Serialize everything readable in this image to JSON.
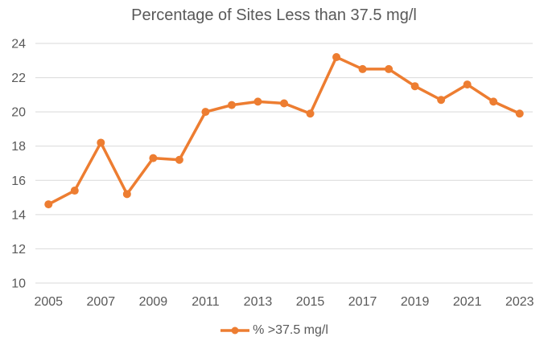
{
  "title": "Percentage of Sites Less than 37.5 mg/l",
  "legend": {
    "label": "% >37.5 mg/l"
  },
  "colors": {
    "line": "#ED7D31",
    "marker": "#ED7D31",
    "text": "#595959",
    "gridline": "#D9D9D9"
  },
  "chart_data": {
    "type": "line",
    "title": "Percentage of Sites Less than 37.5 mg/l",
    "x": [
      2005,
      2006,
      2007,
      2008,
      2009,
      2010,
      2011,
      2012,
      2013,
      2014,
      2015,
      2016,
      2017,
      2018,
      2019,
      2020,
      2021,
      2022,
      2023
    ],
    "series": [
      {
        "name": "% >37.5 mg/l",
        "values": [
          14.6,
          15.4,
          18.2,
          15.2,
          17.3,
          17.2,
          20.0,
          20.4,
          20.6,
          20.5,
          19.9,
          23.2,
          22.5,
          22.5,
          21.5,
          20.7,
          21.6,
          20.6,
          19.9
        ]
      }
    ],
    "xlabel": "",
    "ylabel": "",
    "ylim": [
      10,
      24
    ],
    "ytick_step": 2,
    "ytick_labels": [
      "10",
      "12",
      "14",
      "16",
      "18",
      "20",
      "22",
      "24"
    ],
    "xtick_every": 2,
    "xtick_labels": [
      "2005",
      "2007",
      "2009",
      "2011",
      "2013",
      "2015",
      "2017",
      "2019",
      "2021",
      "2023"
    ],
    "grid": "horizontal",
    "legend_position": "bottom"
  }
}
